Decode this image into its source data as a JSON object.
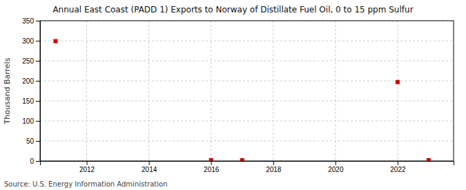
{
  "chart_data": {
    "type": "scatter",
    "title": "Annual East Coast (PADD 1) Exports to Norway of Distillate Fuel Oil, 0 to 15 ppm Sulfur",
    "ylabel": "Thousand Barrels",
    "source": "Source: U.S. Energy Information Administration",
    "x": [
      2011,
      2016,
      2017,
      2022,
      2023
    ],
    "values": [
      299,
      2,
      2,
      197,
      2
    ],
    "color": "#cc0000",
    "marker": "square",
    "xlim": [
      2010.5,
      2023.8
    ],
    "ylim": [
      0,
      350
    ],
    "xticks": [
      2012,
      2014,
      2016,
      2018,
      2020,
      2022
    ],
    "yticks": [
      0,
      50,
      100,
      150,
      200,
      250,
      300,
      350
    ],
    "grid": true
  }
}
